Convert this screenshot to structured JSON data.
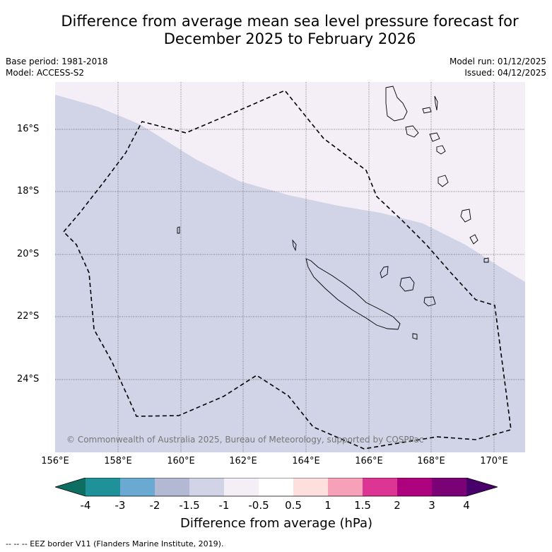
{
  "title": {
    "line1": "Difference from average mean sea level pressure forecast for",
    "line2": "December 2025 to February 2026"
  },
  "meta": {
    "base_period": "Base period: 1981-2018",
    "model": "Model: ACCESS-S2",
    "model_run": "Model run: 01/12/2025",
    "issued": "Issued: 04/12/2025"
  },
  "map": {
    "copyright": "© Commonwealth of Australia 2025, Bureau of Meteorology, supported by COSPPac",
    "lat_labels": [
      "16°S",
      "18°S",
      "20°S",
      "22°S",
      "24°S"
    ],
    "lon_labels": [
      "156°E",
      "158°E",
      "160°E",
      "162°E",
      "164°E",
      "166°E",
      "168°E",
      "170°E"
    ],
    "fill_colors": {
      "minus1_5_to_minus1": "#d1d3e6",
      "minus1_to_minus0_5": "#f4eef6"
    }
  },
  "colorbar": {
    "title": "Difference from average (hPa)",
    "ticks": [
      "-4",
      "-3",
      "-2",
      "-1.5",
      "-1",
      "-0.5",
      "0.5",
      "1",
      "1.5",
      "2",
      "3",
      "4"
    ],
    "colors": [
      "#0f6e62",
      "#1f9299",
      "#6aaad2",
      "#b3b9d2",
      "#d1d3e6",
      "#f4eef6",
      "#ffffff",
      "#fde0de",
      "#f7a1b8",
      "#dc3593",
      "#ad017d",
      "#7a0176",
      "#48006a"
    ]
  },
  "footer": "--  --  -- EEZ border V11 (Flanders Marine Institute, 2019)."
}
